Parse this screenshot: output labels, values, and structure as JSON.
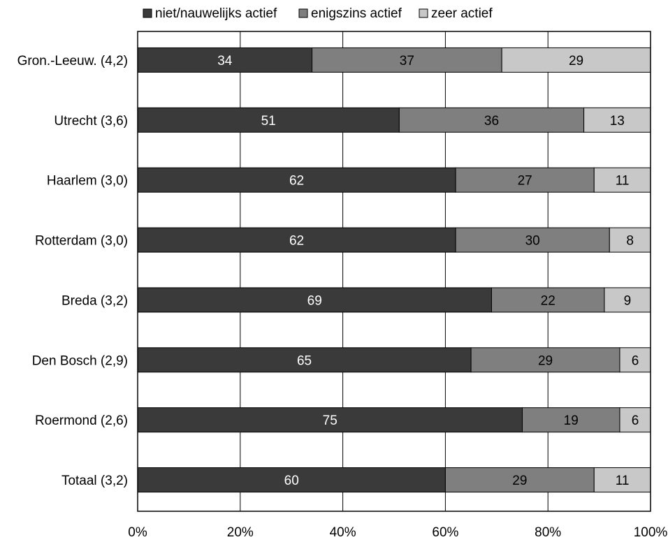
{
  "chart_data": {
    "type": "bar",
    "orientation": "horizontal",
    "stacked": true,
    "percent_scale": true,
    "categories": [
      "Gron.-Leeuw. (4,2)",
      "Utrecht (3,6)",
      "Haarlem (3,0)",
      "Rotterdam (3,0)",
      "Breda (3,2)",
      "Den Bosch (2,9)",
      "Roermond (2,6)",
      "Totaal (3,2)"
    ],
    "series": [
      {
        "name": "niet/nauwelijks actief",
        "color": "#3a3a3a",
        "label_color": "#ffffff",
        "values": [
          34,
          51,
          62,
          62,
          69,
          65,
          75,
          60
        ]
      },
      {
        "name": "enigszins actief",
        "color": "#7f7f7f",
        "label_color": "#000000",
        "values": [
          37,
          36,
          27,
          30,
          22,
          29,
          19,
          29
        ]
      },
      {
        "name": "zeer actief",
        "color": "#c8c8c8",
        "label_color": "#000000",
        "values": [
          29,
          13,
          11,
          8,
          9,
          6,
          6,
          11
        ]
      }
    ],
    "data_labels": [
      [
        "34",
        "51",
        "62",
        "62",
        "69",
        "65",
        "75",
        "60"
      ],
      [
        "37",
        "36",
        "27",
        "30",
        "22",
        "29",
        "19",
        "29"
      ],
      [
        "29",
        "13",
        "11",
        "8",
        "9",
        "6",
        "6",
        "11"
      ]
    ],
    "x_ticks": [
      "0%",
      "20%",
      "40%",
      "60%",
      "80%",
      "100%"
    ],
    "xlim": [
      0,
      100
    ],
    "grid": "vertical",
    "legend_position": "top",
    "title": "",
    "xlabel": "",
    "ylabel": ""
  }
}
